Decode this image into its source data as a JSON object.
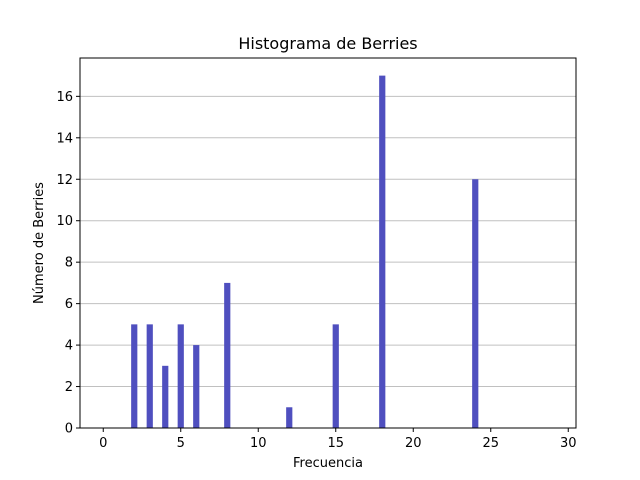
{
  "chart_data": {
    "type": "bar",
    "title": "Histograma de Berries",
    "xlabel": "Frecuencia",
    "ylabel": "Número de Berries",
    "x": [
      2,
      3,
      4,
      5,
      6,
      8,
      12,
      15,
      18,
      24
    ],
    "values": [
      5,
      5,
      3,
      5,
      4,
      7,
      1,
      5,
      17,
      12
    ],
    "xlim": [
      -1.5,
      30.5
    ],
    "ylim": [
      0,
      17.85
    ],
    "xticks": [
      "0",
      "5",
      "10",
      "15",
      "20",
      "25",
      "30"
    ],
    "yticks": [
      "0",
      "2",
      "4",
      "6",
      "8",
      "10",
      "12",
      "14",
      "16"
    ],
    "bar_width": 0.4,
    "grid": "y",
    "bar_color": "#4f4fbf",
    "grid_color": "#c0c0c0"
  }
}
